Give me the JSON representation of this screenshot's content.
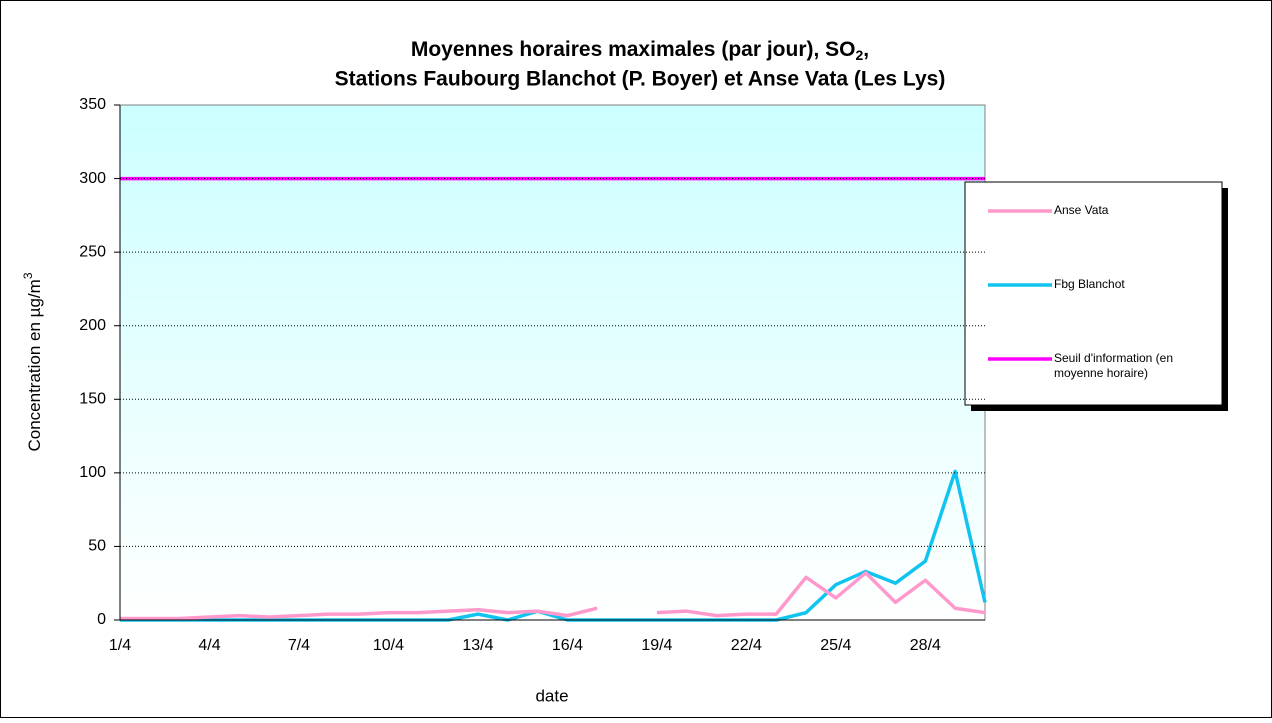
{
  "chart_data": {
    "type": "line",
    "title": [
      "Moyennes horaires maximales (par jour), SO",
      "2",
      ",",
      "Stations Faubourg Blanchot (P. Boyer) et Anse Vata (Les Lys)"
    ],
    "y_label": [
      "Concentration en µg/m",
      "3"
    ],
    "x_label": "date",
    "categories": [
      "1/4",
      null,
      null,
      "4/4",
      null,
      null,
      "7/4",
      null,
      null,
      "10/4",
      null,
      null,
      "13/4",
      null,
      null,
      "16/4",
      null,
      null,
      "19/4",
      null,
      null,
      "22/4",
      null,
      null,
      "25/4",
      null,
      null,
      "28/4",
      null,
      null
    ],
    "series": [
      {
        "name": "Anse Vata",
        "color": "#ff99cc",
        "values": [
          1,
          1,
          1,
          2,
          3,
          2,
          3,
          4,
          4,
          5,
          5,
          6,
          7,
          5,
          6,
          3,
          8,
          null,
          5,
          6,
          3,
          4,
          4,
          29,
          15,
          32,
          12,
          27,
          8,
          5
        ]
      },
      {
        "name": "Fbg Blanchot",
        "color": "#11c4f0",
        "values": [
          0,
          0,
          0,
          0,
          0,
          0,
          0,
          0,
          0,
          0,
          0,
          0,
          4,
          0,
          6,
          0,
          0,
          0,
          0,
          0,
          0,
          0,
          0,
          5,
          24,
          33,
          25,
          40,
          101,
          12
        ]
      },
      {
        "name": "Seuil d'information (en moyenne horaire)",
        "color": "#ff00ff",
        "values": [
          300,
          300,
          300,
          300,
          300,
          300,
          300,
          300,
          300,
          300,
          300,
          300,
          300,
          300,
          300,
          300,
          300,
          300,
          300,
          300,
          300,
          300,
          300,
          300,
          300,
          300,
          300,
          300,
          300,
          300
        ]
      }
    ],
    "ylim": [
      0,
      350
    ],
    "yticks": [
      0,
      50,
      100,
      150,
      200,
      250,
      300,
      350
    ],
    "grid": true,
    "legend": "right"
  }
}
